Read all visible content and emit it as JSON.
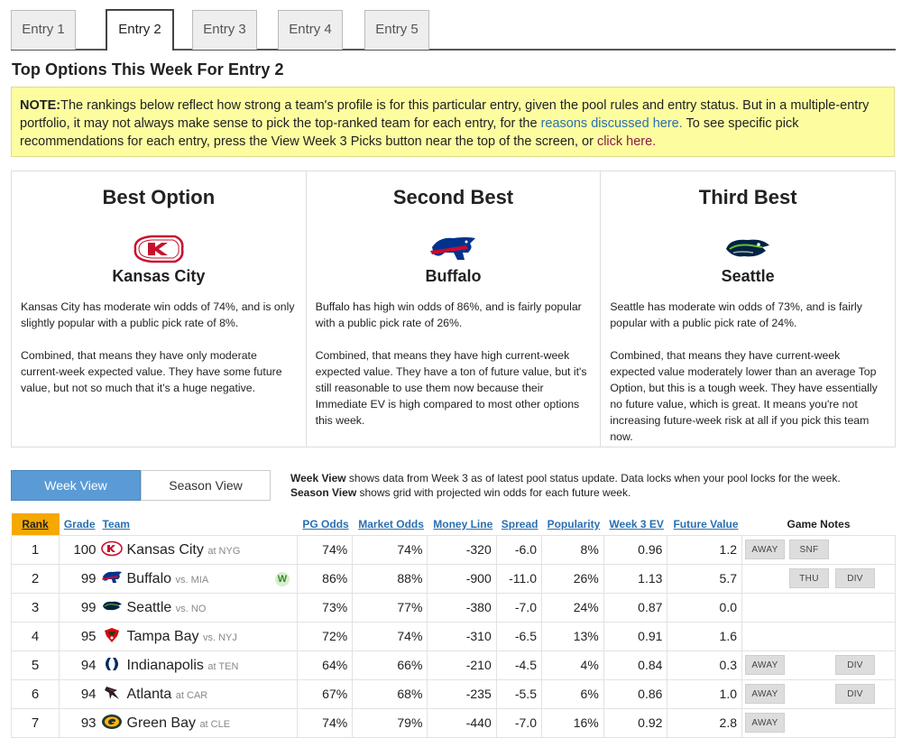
{
  "tabs": [
    "Entry 1",
    "Entry 2",
    "Entry 3",
    "Entry 4",
    "Entry 5"
  ],
  "active_tab": 1,
  "title": "Top Options This Week For Entry 2",
  "note": {
    "label": "NOTE:",
    "text1": "The rankings below reflect how strong a team's profile is for this particular entry, given the pool rules and entry status. But in a multiple-entry portfolio, it may not always make sense to pick the top-ranked team for each entry, for the ",
    "link1": "reasons discussed here.",
    "text2": " To see specific pick recommendations for each entry, press the View Week 3 Picks button near the top of the screen, or ",
    "link2": "click here."
  },
  "options": [
    {
      "heading": "Best Option",
      "team": "Kansas City",
      "p1": "Kansas City has moderate win odds of 74%, and is only slightly popular with a public pick rate of 8%.",
      "p2": "Combined, that means they have only moderate current-week expected value. They have some future value, but not so much that it's a huge negative."
    },
    {
      "heading": "Second Best",
      "team": "Buffalo",
      "p1": "Buffalo has high win odds of 86%, and is fairly popular with a public pick rate of 26%.",
      "p2": "Combined, that means they have high current-week expected value. They have a ton of future value, but it's still reasonable to use them now because their Immediate EV is high compared to most other options this week."
    },
    {
      "heading": "Third Best",
      "team": "Seattle",
      "p1": "Seattle has moderate win odds of 73%, and is fairly popular with a public pick rate of 24%.",
      "p2": "Combined, that means they have current-week expected value moderately lower than an average Top Option, but this is a tough week. They have essentially no future value, which is great. It means you're not increasing future-week risk at all if you pick this team now."
    }
  ],
  "view": {
    "week_label": "Week View",
    "season_label": "Season View",
    "week_desc_bold": "Week View",
    "week_desc": " shows data from Week 3 as of latest pool status update. Data locks when your pool locks for the week.",
    "season_desc_bold": "Season View",
    "season_desc": " shows grid with projected win odds for each future week."
  },
  "table": {
    "headers": {
      "rank": "Rank",
      "grade": "Grade",
      "team": "Team",
      "pg_odds": "PG Odds",
      "market_odds": "Market Odds",
      "money_line": "Money Line",
      "spread": "Spread",
      "popularity": "Popularity",
      "ev": "Week 3 EV",
      "future_value": "Future Value",
      "notes": "Game Notes"
    },
    "rows": [
      {
        "rank": "1",
        "grade": "100",
        "team": "Kansas City",
        "opp": "at NYG",
        "pg": "74%",
        "market": "74%",
        "ml": "-320",
        "spread": "-6.0",
        "pop": "8%",
        "ev": "0.96",
        "fv": "1.2",
        "win": "",
        "notes": [
          "AWAY",
          "SNF",
          ""
        ],
        "logo": "chiefs"
      },
      {
        "rank": "2",
        "grade": "99",
        "team": "Buffalo",
        "opp": "vs. MIA",
        "pg": "86%",
        "market": "88%",
        "ml": "-900",
        "spread": "-11.0",
        "pop": "26%",
        "ev": "1.13",
        "fv": "5.7",
        "win": "W",
        "notes": [
          "",
          "THU",
          "DIV"
        ],
        "logo": "bills"
      },
      {
        "rank": "3",
        "grade": "99",
        "team": "Seattle",
        "opp": "vs. NO",
        "pg": "73%",
        "market": "77%",
        "ml": "-380",
        "spread": "-7.0",
        "pop": "24%",
        "ev": "0.87",
        "fv": "0.0",
        "win": "",
        "notes": [
          "",
          "",
          ""
        ],
        "logo": "seahawks"
      },
      {
        "rank": "4",
        "grade": "95",
        "team": "Tampa Bay",
        "opp": "vs. NYJ",
        "pg": "72%",
        "market": "74%",
        "ml": "-310",
        "spread": "-6.5",
        "pop": "13%",
        "ev": "0.91",
        "fv": "1.6",
        "win": "",
        "notes": [
          "",
          "",
          ""
        ],
        "logo": "bucs"
      },
      {
        "rank": "5",
        "grade": "94",
        "team": "Indianapolis",
        "opp": "at TEN",
        "pg": "64%",
        "market": "66%",
        "ml": "-210",
        "spread": "-4.5",
        "pop": "4%",
        "ev": "0.84",
        "fv": "0.3",
        "win": "",
        "notes": [
          "AWAY",
          "",
          "DIV"
        ],
        "logo": "colts"
      },
      {
        "rank": "6",
        "grade": "94",
        "team": "Atlanta",
        "opp": "at CAR",
        "pg": "67%",
        "market": "68%",
        "ml": "-235",
        "spread": "-5.5",
        "pop": "6%",
        "ev": "0.86",
        "fv": "1.0",
        "win": "",
        "notes": [
          "AWAY",
          "",
          "DIV"
        ],
        "logo": "falcons"
      },
      {
        "rank": "7",
        "grade": "93",
        "team": "Green Bay",
        "opp": "at CLE",
        "pg": "74%",
        "market": "79%",
        "ml": "-440",
        "spread": "-7.0",
        "pop": "16%",
        "ev": "0.92",
        "fv": "2.8",
        "win": "",
        "notes": [
          "AWAY",
          "",
          ""
        ],
        "logo": "packers"
      }
    ]
  },
  "colors": {
    "accent_blue": "#5b9bd5",
    "rank_header": "#f5a800",
    "note_bg": "#fdfda0",
    "link": "#2a6fb0"
  }
}
